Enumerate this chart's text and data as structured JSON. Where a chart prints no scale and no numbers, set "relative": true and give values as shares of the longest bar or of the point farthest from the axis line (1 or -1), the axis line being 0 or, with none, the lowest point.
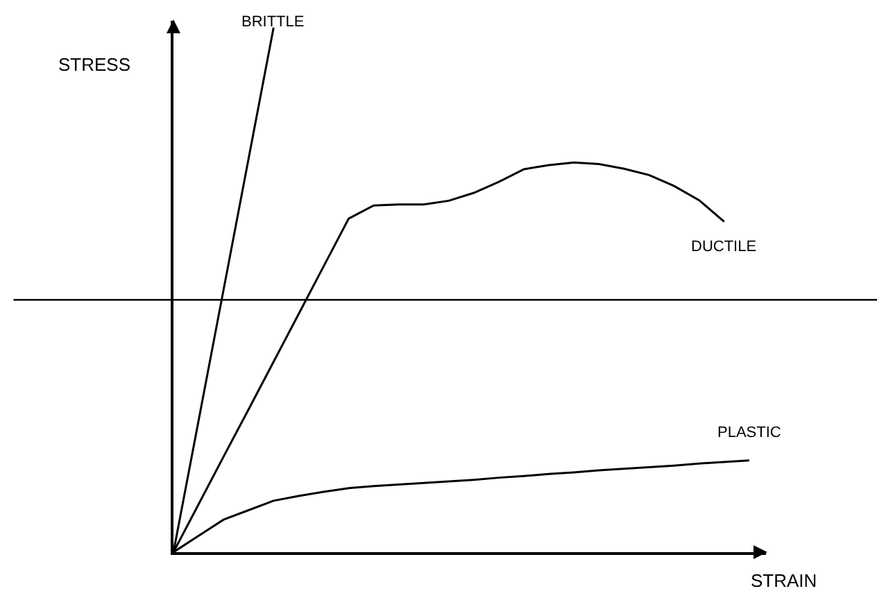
{
  "chart_data": {
    "type": "line",
    "relative": true,
    "xlabel": "STRAIN",
    "ylabel": "STRESS",
    "marker": "none",
    "line_style": "solid",
    "grid": false,
    "legend": false,
    "categories": [
      null,
      null,
      null,
      null,
      null,
      null,
      null,
      null,
      null,
      null,
      null,
      null,
      null,
      null,
      null,
      null,
      null,
      null,
      null,
      null,
      null,
      null,
      null,
      null
    ],
    "series": [
      {
        "name": "BRITTLE",
        "color": "#000000",
        "values": [
          0,
          0.25,
          0.5,
          0.75,
          1,
          null,
          null,
          null,
          null,
          null,
          null,
          null,
          null,
          null,
          null,
          null,
          null,
          null,
          null,
          null,
          null,
          null,
          null,
          null
        ]
      },
      {
        "name": "DUCTILE",
        "color": "#000000",
        "values": [
          0,
          0.091,
          0.182,
          0.272,
          0.363,
          0.454,
          0.545,
          0.636,
          0.661,
          0.663,
          0.663,
          0.67,
          0.685,
          0.706,
          0.73,
          0.738,
          0.743,
          0.74,
          0.731,
          0.719,
          0.698,
          0.671,
          0.63,
          null
        ]
      },
      {
        "name": "PLASTIC",
        "color": "#000000",
        "values": [
          0,
          0.031,
          0.062,
          0.08,
          0.098,
          0.107,
          0.115,
          0.122,
          0.126,
          0.129,
          0.132,
          0.135,
          0.138,
          0.142,
          0.145,
          0.149,
          0.152,
          0.156,
          0.159,
          0.162,
          0.165,
          0.169,
          0.172,
          0.175
        ]
      }
    ],
    "ref_lines": [
      {
        "axis": "y",
        "value": 0.481,
        "color": "#000000"
      }
    ]
  }
}
